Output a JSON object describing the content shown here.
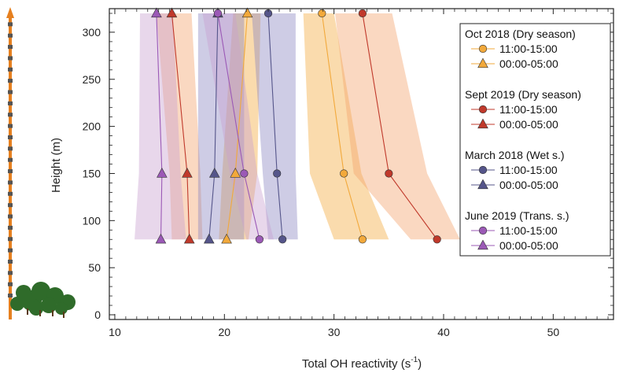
{
  "chart_data": {
    "type": "line",
    "xlabel": "Total OH reactivity (s",
    "xlabel_sup": "-1",
    "xlabel_end": ")",
    "ylabel": "Height (m)",
    "xlim": [
      9.5,
      55.5
    ],
    "ylim": [
      -5,
      325
    ],
    "xticks": [
      10,
      20,
      30,
      40,
      50
    ],
    "yticks": [
      0,
      50,
      100,
      150,
      200,
      250,
      300
    ],
    "heights": [
      80,
      150,
      320
    ],
    "groups": [
      {
        "title": "Oct 2018 (Dry season)",
        "color": "#f2a93b",
        "series": [
          {
            "name": "11:00-15:00",
            "marker": "circle",
            "x": [
              32.6,
              30.9,
              28.9
            ],
            "band_low": [
              30.0,
              27.8,
              27.2
            ],
            "band_high": [
              35.0,
              32.5,
              30.0
            ]
          },
          {
            "name": "00:00-05:00",
            "marker": "triangle",
            "x": [
              20.2,
              21.0,
              22.1
            ],
            "band_low": [
              19.5,
              19.8,
              20.8
            ],
            "band_high": [
              22.2,
              23.0,
              23.3
            ]
          }
        ]
      },
      {
        "title": "Sept 2019 (Dry season)",
        "color": "#c0392b",
        "band_color": "#f4a26b",
        "series": [
          {
            "name": "11:00-15:00",
            "marker": "circle",
            "x": [
              39.4,
              35.0,
              32.6
            ],
            "band_low": [
              37.0,
              31.8,
              30.1
            ],
            "band_high": [
              41.5,
              38.5,
              35.3
            ]
          },
          {
            "name": "00:00-05:00",
            "marker": "triangle",
            "x": [
              16.8,
              16.6,
              15.2
            ],
            "band_low": [
              15.2,
              15.0,
              13.8
            ],
            "band_high": [
              18.0,
              17.8,
              17.0
            ]
          }
        ]
      },
      {
        "title": "March 2018 (Wet s.)",
        "color": "#55558a",
        "band_color": "#8a85c0",
        "series": [
          {
            "name": "11:00-15:00",
            "marker": "circle",
            "x": [
              25.3,
              24.8,
              24.0
            ],
            "band_low": [
              24.0,
              23.5,
              22.5
            ],
            "band_high": [
              26.7,
              26.5,
              26.5
            ]
          },
          {
            "name": "00:00-05:00",
            "marker": "triangle",
            "x": [
              18.6,
              19.1,
              19.4
            ],
            "band_low": [
              17.6,
              17.6,
              17.6
            ],
            "band_high": [
              21.8,
              21.8,
              21.8
            ]
          }
        ]
      },
      {
        "title": "June 2019 (Trans. s.)",
        "color": "#9b59b6",
        "band_color": "#c9a0d0",
        "series": [
          {
            "name": "11:00-15:00",
            "marker": "circle",
            "x": [
              23.2,
              21.8,
              19.4
            ],
            "band_low": [
              22.0,
              20.5,
              18.0
            ],
            "band_high": [
              24.5,
              23.0,
              21.0
            ]
          },
          {
            "name": "00:00-05:00",
            "marker": "triangle",
            "x": [
              14.2,
              14.3,
              13.8
            ],
            "band_low": [
              11.8,
              12.2,
              12.3
            ],
            "band_high": [
              16.5,
              16.0,
              15.3
            ]
          }
        ]
      }
    ]
  }
}
